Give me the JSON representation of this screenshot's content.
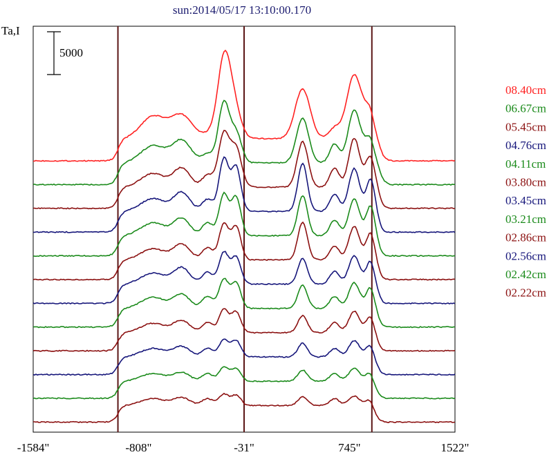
{
  "chart_data": {
    "type": "line",
    "title": "sun:2014/05/17 13:10:00.170",
    "ylabel": "Ta,I",
    "scale_bar_label": "5000",
    "scale_bar_value": 5000,
    "xlim": [
      -1584,
      1522
    ],
    "xticks": [
      {
        "value": -1584,
        "label": "-1584\""
      },
      {
        "value": -808,
        "label": "-808\""
      },
      {
        "value": -31,
        "label": "-31\""
      },
      {
        "value": 745,
        "label": "745\""
      },
      {
        "value": 1522,
        "label": "1522\""
      }
    ],
    "vlines": [
      -960,
      -31,
      910
    ],
    "grid": false,
    "legend_position": "right",
    "series": [
      {
        "name": "08.40cm",
        "color": "#ff2020",
        "baseline": 0,
        "peaks": [
          [
            -700,
            2600,
            90
          ],
          [
            -490,
            2700,
            80
          ],
          [
            -250,
            800,
            60
          ],
          [
            -180,
            8200,
            45
          ],
          [
            -110,
            4000,
            50
          ],
          [
            400,
            5800,
            55
          ],
          [
            635,
            1200,
            40
          ],
          [
            780,
            7400,
            55
          ],
          [
            910,
            3800,
            45
          ]
        ]
      },
      {
        "name": "06.67cm",
        "color": "#1a8a1a",
        "baseline": 0,
        "peaks": [
          [
            -700,
            2000,
            90
          ],
          [
            -490,
            2600,
            70
          ],
          [
            -300,
            1000,
            40
          ],
          [
            -180,
            7000,
            40
          ],
          [
            -90,
            3500,
            40
          ],
          [
            400,
            5200,
            45
          ],
          [
            635,
            2200,
            35
          ],
          [
            780,
            6100,
            45
          ],
          [
            910,
            3700,
            45
          ]
        ]
      },
      {
        "name": "05.45cm",
        "color": "#8b1010",
        "baseline": 0,
        "peaks": [
          [
            -700,
            1600,
            90
          ],
          [
            -490,
            2200,
            60
          ],
          [
            -300,
            1400,
            40
          ],
          [
            -180,
            6200,
            40
          ],
          [
            -90,
            4500,
            40
          ],
          [
            400,
            5300,
            40
          ],
          [
            635,
            2200,
            35
          ],
          [
            780,
            5700,
            40
          ],
          [
            910,
            4500,
            40
          ]
        ]
      },
      {
        "name": "04.76cm",
        "color": "#15157a",
        "baseline": 0,
        "peaks": [
          [
            -700,
            1500,
            90
          ],
          [
            -490,
            2200,
            60
          ],
          [
            -300,
            1400,
            40
          ],
          [
            -180,
            6100,
            35
          ],
          [
            -90,
            5200,
            35
          ],
          [
            400,
            5600,
            35
          ],
          [
            635,
            2000,
            35
          ],
          [
            780,
            5000,
            40
          ],
          [
            910,
            4700,
            35
          ]
        ]
      },
      {
        "name": "04.11cm",
        "color": "#1a8a1a",
        "baseline": 0,
        "peaks": [
          [
            -700,
            1500,
            90
          ],
          [
            -490,
            2000,
            60
          ],
          [
            -300,
            1500,
            40
          ],
          [
            -180,
            4800,
            35
          ],
          [
            -90,
            4500,
            35
          ],
          [
            400,
            4700,
            35
          ],
          [
            635,
            1800,
            35
          ],
          [
            780,
            4300,
            40
          ],
          [
            910,
            4400,
            35
          ]
        ]
      },
      {
        "name": "03.80cm",
        "color": "#8b1010",
        "baseline": 0,
        "peaks": [
          [
            -700,
            1300,
            90
          ],
          [
            -490,
            1800,
            60
          ],
          [
            -300,
            1400,
            40
          ],
          [
            -180,
            4200,
            35
          ],
          [
            -90,
            3900,
            35
          ],
          [
            400,
            4400,
            35
          ],
          [
            635,
            1600,
            35
          ],
          [
            780,
            3900,
            40
          ],
          [
            910,
            4000,
            35
          ]
        ]
      },
      {
        "name": "03.45cm",
        "color": "#15157a",
        "baseline": 0,
        "peaks": [
          [
            -700,
            1300,
            90
          ],
          [
            -490,
            1900,
            60
          ],
          [
            -300,
            1400,
            40
          ],
          [
            -180,
            3700,
            35
          ],
          [
            -90,
            3200,
            35
          ],
          [
            400,
            3000,
            35
          ],
          [
            635,
            1500,
            35
          ],
          [
            780,
            3300,
            40
          ],
          [
            910,
            3500,
            35
          ]
        ]
      },
      {
        "name": "03.21cm",
        "color": "#1a8a1a",
        "baseline": 0,
        "peaks": [
          [
            -700,
            1300,
            90
          ],
          [
            -490,
            1600,
            60
          ],
          [
            -300,
            1400,
            40
          ],
          [
            -180,
            3400,
            35
          ],
          [
            -90,
            3000,
            35
          ],
          [
            400,
            2700,
            35
          ],
          [
            635,
            1400,
            35
          ],
          [
            780,
            3000,
            40
          ],
          [
            910,
            3200,
            35
          ]
        ]
      },
      {
        "name": "02.86cm",
        "color": "#8b1010",
        "baseline": 0,
        "peaks": [
          [
            -700,
            1100,
            90
          ],
          [
            -490,
            1400,
            60
          ],
          [
            -300,
            1200,
            40
          ],
          [
            -180,
            2700,
            35
          ],
          [
            -90,
            2400,
            35
          ],
          [
            400,
            2000,
            35
          ],
          [
            635,
            1200,
            35
          ],
          [
            780,
            2500,
            40
          ],
          [
            910,
            2600,
            35
          ]
        ]
      },
      {
        "name": "02.56cm",
        "color": "#15157a",
        "baseline": 0,
        "peaks": [
          [
            -700,
            1000,
            90
          ],
          [
            -490,
            1200,
            60
          ],
          [
            -300,
            1000,
            40
          ],
          [
            -180,
            2000,
            35
          ],
          [
            -90,
            1900,
            35
          ],
          [
            400,
            1600,
            35
          ],
          [
            635,
            1000,
            35
          ],
          [
            780,
            1900,
            40
          ],
          [
            910,
            2000,
            35
          ]
        ]
      },
      {
        "name": "02.42cm",
        "color": "#1a8a1a",
        "baseline": 0,
        "peaks": [
          [
            -700,
            900,
            90
          ],
          [
            -490,
            1000,
            60
          ],
          [
            -300,
            900,
            40
          ],
          [
            -180,
            1600,
            35
          ],
          [
            -90,
            1500,
            35
          ],
          [
            400,
            1300,
            35
          ],
          [
            635,
            900,
            35
          ],
          [
            780,
            1500,
            40
          ],
          [
            910,
            1500,
            35
          ]
        ]
      },
      {
        "name": "02.22cm",
        "color": "#8b1010",
        "baseline": 0,
        "peaks": [
          [
            -700,
            800,
            90
          ],
          [
            -490,
            900,
            60
          ],
          [
            -300,
            800,
            40
          ],
          [
            -180,
            1300,
            35
          ],
          [
            -90,
            1200,
            35
          ],
          [
            400,
            1000,
            35
          ],
          [
            635,
            800,
            35
          ],
          [
            780,
            1100,
            40
          ],
          [
            910,
            1100,
            35
          ]
        ]
      }
    ]
  }
}
